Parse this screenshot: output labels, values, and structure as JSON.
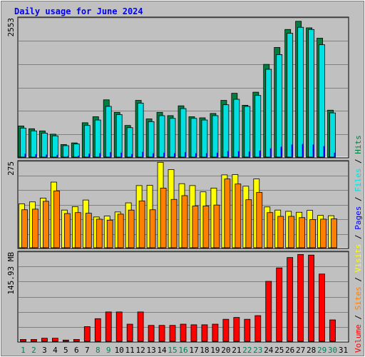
{
  "chart_data": [
    {
      "type": "bar",
      "title": "Daily usage for June 2024",
      "title_color": "#0000ff",
      "ymax_label": "2553",
      "ymax": 2553,
      "categories": [
        "1",
        "2",
        "3",
        "4",
        "5",
        "6",
        "7",
        "8",
        "9",
        "10",
        "11",
        "12",
        "13",
        "14",
        "15",
        "16",
        "17",
        "18",
        "19",
        "20",
        "21",
        "22",
        "23",
        "24",
        "25",
        "26",
        "27",
        "28",
        "29",
        "30",
        "31"
      ],
      "weekend_days": [
        "1",
        "2",
        "8",
        "9",
        "15",
        "16",
        "22",
        "23",
        "29",
        "30"
      ],
      "series": [
        {
          "name": "Hits",
          "color": "#008040",
          "values": [
            570,
            520,
            480,
            420,
            230,
            260,
            630,
            740,
            1050,
            820,
            580,
            1040,
            700,
            820,
            760,
            940,
            740,
            720,
            800,
            1040,
            1170,
            950,
            1190,
            1700,
            2010,
            2340,
            2490,
            2370,
            2180,
            860,
            0
          ]
        },
        {
          "name": "Files",
          "color": "#00e0e0",
          "values": [
            530,
            480,
            440,
            390,
            210,
            240,
            580,
            680,
            930,
            780,
            540,
            990,
            650,
            760,
            710,
            890,
            710,
            680,
            760,
            960,
            1060,
            930,
            1130,
            1610,
            1880,
            2270,
            2380,
            2340,
            2060,
            810,
            0
          ]
        },
        {
          "name": "Pages",
          "color": "#0000ff",
          "values": [
            60,
            50,
            45,
            40,
            20,
            25,
            60,
            70,
            90,
            80,
            55,
            95,
            70,
            80,
            70,
            90,
            70,
            70,
            80,
            110,
            110,
            100,
            120,
            160,
            190,
            230,
            240,
            230,
            200,
            80,
            0
          ]
        }
      ]
    },
    {
      "type": "bar",
      "ymax_label": "275",
      "ymax": 275,
      "series": [
        {
          "name": "Visits",
          "color": "#ffff00",
          "values": [
            140,
            146,
            158,
            209,
            120,
            131,
            152,
            98,
            101,
            114,
            143,
            198,
            199,
            272,
            249,
            204,
            198,
            178,
            190,
            232,
            233,
            196,
            219,
            130,
            120,
            116,
            113,
            119,
            103,
            102,
            0
          ]
        },
        {
          "name": "Sites",
          "color": "#ff8000",
          "values": [
            121,
            123,
            148,
            181,
            109,
            112,
            110,
            91,
            88,
            107,
            120,
            149,
            121,
            190,
            154,
            166,
            133,
            133,
            136,
            219,
            203,
            153,
            176,
            112,
            100,
            100,
            96,
            90,
            91,
            92,
            0
          ]
        }
      ],
      "side_legend": [
        "Hits",
        "Files",
        "Pages",
        "Visits",
        "Sites",
        "Volume"
      ],
      "side_legend_colors": [
        "#008040",
        "#00e0e0",
        "#0000ff",
        "#ffff00",
        "#ff8000",
        "#ff0000"
      ]
    },
    {
      "type": "bar",
      "ymax_label": "145.93 MB",
      "ymax": 145.93,
      "series": [
        {
          "name": "Volume",
          "color": "#ff0000",
          "values": [
            3,
            3,
            5,
            5,
            2,
            3,
            24,
            37,
            48,
            48,
            28,
            48,
            26,
            26,
            26,
            28,
            27,
            27,
            28,
            36,
            39,
            36,
            42,
            98,
            120,
            137,
            142,
            141,
            110,
            35,
            0
          ]
        }
      ]
    }
  ]
}
